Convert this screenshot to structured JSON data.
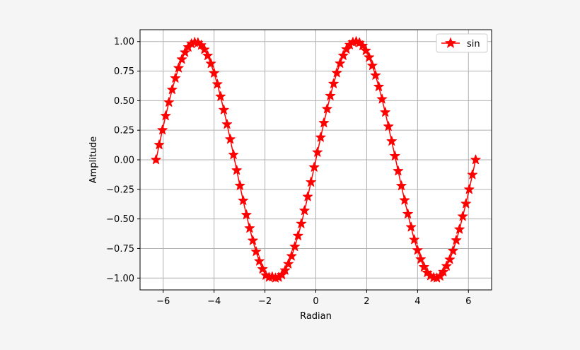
{
  "chart_data": {
    "type": "line",
    "title": "",
    "xlabel": "Radian",
    "ylabel": "Amplitude",
    "xlim": [
      -6.91,
      6.91
    ],
    "ylim": [
      -1.1,
      1.1
    ],
    "xticks": [
      -6,
      -4,
      -2,
      0,
      2,
      4,
      6
    ],
    "xtick_labels": [
      "−6",
      "−4",
      "−2",
      "0",
      "2",
      "4",
      "6"
    ],
    "yticks": [
      -1.0,
      -0.75,
      -0.5,
      -0.25,
      0.0,
      0.25,
      0.5,
      0.75,
      1.0
    ],
    "ytick_labels": [
      "−1.00",
      "−0.75",
      "−0.50",
      "−0.25",
      "0.00",
      "0.25",
      "0.50",
      "0.75",
      "1.00"
    ],
    "grid": true,
    "legend_position": "top-right",
    "series": [
      {
        "name": "sin",
        "color": "#ff0000",
        "marker": "star",
        "x": [
          -6.2832,
          -6.1563,
          -6.0293,
          -5.9024,
          -5.7755,
          -5.6486,
          -5.5216,
          -5.3947,
          -5.2678,
          -5.1408,
          -5.0139,
          -4.887,
          -4.76,
          -4.6331,
          -4.5062,
          -4.3793,
          -4.2523,
          -4.1254,
          -3.9985,
          -3.8715,
          -3.7446,
          -3.6177,
          -3.4907,
          -3.3638,
          -3.2369,
          -3.11,
          -2.983,
          -2.8561,
          -2.7292,
          -2.6022,
          -2.4753,
          -2.3484,
          -2.2214,
          -2.0945,
          -1.9676,
          -1.8407,
          -1.7137,
          -1.5868,
          -1.4599,
          -1.3329,
          -1.206,
          -1.0791,
          -0.9521,
          -0.8252,
          -0.6983,
          -0.5714,
          -0.4444,
          -0.3175,
          -0.1906,
          -0.0636,
          0.0633,
          0.1902,
          0.3172,
          0.4441,
          0.571,
          0.6979,
          0.8249,
          0.9518,
          1.0787,
          1.2057,
          1.3326,
          1.4595,
          1.5865,
          1.7134,
          1.8403,
          1.9672,
          2.0942,
          2.2211,
          2.348,
          2.475,
          2.6019,
          2.7288,
          2.8558,
          2.9827,
          3.1096,
          3.2365,
          3.3635,
          3.4904,
          3.6173,
          3.7443,
          3.8712,
          3.9981,
          4.1251,
          4.252,
          4.3789,
          4.5058,
          4.6328,
          4.7597,
          4.8866,
          5.0136,
          5.1405,
          5.2674,
          5.3944,
          5.5213,
          5.6482,
          5.7751,
          5.9021,
          6.029,
          6.1559,
          6.2829
        ],
        "y": [
          0.0,
          0.1266,
          0.2511,
          0.3717,
          0.4862,
          0.5929,
          0.6899,
          0.7757,
          0.8488,
          0.908,
          0.9523,
          0.9809,
          0.9933,
          0.9893,
          0.9688,
          0.9322,
          0.8801,
          0.8131,
          0.7325,
          0.6393,
          0.535,
          0.4214,
          0.3001,
          0.1733,
          0.0429,
          -0.0888,
          -0.2187,
          -0.3449,
          -0.4656,
          -0.5789,
          -0.683,
          -0.7764,
          -0.8574,
          -0.9246,
          -0.9769,
          -0.9932,
          -0.9894,
          -0.9999,
          -0.9937,
          -0.972,
          -0.9346,
          -0.8813,
          -0.8146,
          -0.7346,
          -0.6428,
          -0.5406,
          -0.4298,
          -0.3121,
          -0.1894,
          -0.0636,
          0.0633,
          0.1891,
          0.3119,
          0.4296,
          0.5405,
          0.6427,
          0.7345,
          0.8146,
          0.8813,
          0.9346,
          0.9719,
          0.9937,
          0.9999,
          0.9894,
          0.9642,
          0.9232,
          0.8662,
          0.7958,
          0.7136,
          0.6179,
          0.5128,
          0.4016,
          0.2816,
          0.157,
          0.0319,
          -0.0948,
          -0.2199,
          -0.3421,
          -0.458,
          -0.5693,
          -0.6758,
          -0.7647,
          -0.8411,
          -0.9073,
          -0.9544,
          -0.9807,
          -0.9961,
          -0.9994,
          -0.9843,
          -0.9477,
          -0.8985,
          -0.8433,
          -0.7694,
          -0.6806,
          -0.5882,
          -0.4787,
          -0.3716,
          -0.2508,
          -0.1266,
          0.0
        ]
      }
    ]
  }
}
